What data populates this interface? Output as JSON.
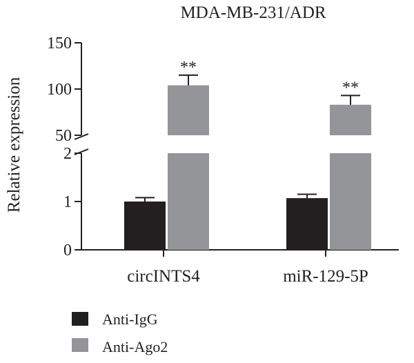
{
  "chart_data": {
    "type": "bar",
    "title": "MDA-MB-231/ADR",
    "xlabel": "",
    "ylabel": "Relative expression",
    "categories": [
      "circINTS4",
      "miR-129-5P"
    ],
    "y_axis": {
      "broken": true,
      "lower_segment": {
        "range": [
          0,
          2
        ],
        "ticks": [
          "0",
          "1",
          "2"
        ]
      },
      "upper_segment": {
        "range": [
          50,
          150
        ],
        "ticks": [
          "50",
          "100",
          "150"
        ]
      }
    },
    "series": [
      {
        "name": "Anti-IgG",
        "color": "#231f20",
        "values": [
          1.0,
          1.07
        ],
        "errors": [
          0.08,
          0.08
        ],
        "annotations": [
          "",
          ""
        ]
      },
      {
        "name": "Anti-Ago2",
        "color": "#939598",
        "values": [
          104,
          83
        ],
        "errors": [
          11,
          10
        ],
        "annotations": [
          "**",
          "**"
        ]
      }
    ],
    "legend": {
      "position": "bottom-left"
    }
  }
}
